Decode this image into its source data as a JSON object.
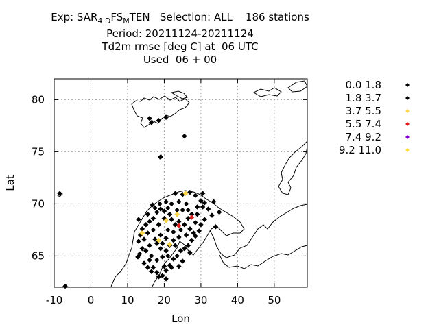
{
  "header": {
    "exp_prefix": "Exp: SAR",
    "exp_sub1": "4 D",
    "exp_mid": "FS",
    "exp_sub2": "M",
    "exp_suffix": "TEN   Selection: ALL    186 stations",
    "period": "Period: 20211124-20211124",
    "parameter": "Td2m rmse [deg C] at  06 UTC",
    "used": "Used  06 + 00"
  },
  "axes": {
    "xlabel": "Lon",
    "ylabel": "Lat",
    "xlim": [
      -10,
      59
    ],
    "ylim": [
      62,
      82
    ],
    "xticks": [
      -10,
      0,
      10,
      20,
      30,
      40,
      50
    ],
    "yticks": [
      65,
      70,
      75,
      80
    ],
    "grid": true
  },
  "legend": {
    "placement": "right",
    "entries": [
      {
        "label": "0.0 1.8",
        "color": "#000000"
      },
      {
        "label": "1.8 3.7",
        "color": "#000000"
      },
      {
        "label": "3.7 5.5",
        "color": "#ffd84a"
      },
      {
        "label": "5.5 7.4",
        "color": "#e02020"
      },
      {
        "label": "7.4 9.2",
        "color": "#8a00d4"
      },
      {
        "label": "9.2 11.0",
        "color": "#ffe040"
      }
    ]
  },
  "chart_data": {
    "type": "scatter",
    "title": "Td2m rmse [deg C] at  06 UTC",
    "xlabel": "Lon",
    "ylabel": "Lat",
    "xlim": [
      -10,
      59
    ],
    "ylim": [
      62,
      82
    ],
    "series": [
      {
        "name": "1.8 3.7",
        "color": "#000000",
        "points": [
          [
            16.0,
            78.2
          ],
          [
            18.5,
            78.0
          ],
          [
            20.5,
            78.3
          ],
          [
            16.5,
            77.8
          ],
          [
            25.5,
            76.5
          ],
          [
            19.0,
            74.5
          ],
          [
            -8.5,
            71.0
          ],
          [
            -7.0,
            62.1
          ],
          [
            23.0,
            71.0
          ],
          [
            25.0,
            70.9
          ],
          [
            27.0,
            71.1
          ],
          [
            28.5,
            70.8
          ],
          [
            30.0,
            70.3
          ],
          [
            31.0,
            70.1
          ],
          [
            32.0,
            69.5
          ],
          [
            29.0,
            69.7
          ],
          [
            26.0,
            70.0
          ],
          [
            24.0,
            70.2
          ],
          [
            22.0,
            70.0
          ],
          [
            21.0,
            69.6
          ],
          [
            20.0,
            69.3
          ],
          [
            19.0,
            69.5
          ],
          [
            18.0,
            69.2
          ],
          [
            17.0,
            68.6
          ],
          [
            16.0,
            68.3
          ],
          [
            15.0,
            68.0
          ],
          [
            14.0,
            67.6
          ],
          [
            13.5,
            67.0
          ],
          [
            13.0,
            66.4
          ],
          [
            14.0,
            65.7
          ],
          [
            13.3,
            65.2
          ],
          [
            12.8,
            64.9
          ],
          [
            14.5,
            64.3
          ],
          [
            15.5,
            63.9
          ],
          [
            16.5,
            63.5
          ],
          [
            18.0,
            63.4
          ],
          [
            19.5,
            63.1
          ],
          [
            20.5,
            63.6
          ],
          [
            21.5,
            64.1
          ],
          [
            22.5,
            64.7
          ],
          [
            23.5,
            65.0
          ],
          [
            24.5,
            65.5
          ],
          [
            25.5,
            65.7
          ],
          [
            26.5,
            66.0
          ],
          [
            27.5,
            66.5
          ],
          [
            28.5,
            66.9
          ],
          [
            29.5,
            67.4
          ],
          [
            30.0,
            68.0
          ],
          [
            31.0,
            68.5
          ],
          [
            33.0,
            68.9
          ],
          [
            35.0,
            69.2
          ],
          [
            34.0,
            67.8
          ],
          [
            22.0,
            68.5
          ],
          [
            23.0,
            68.0
          ],
          [
            21.0,
            67.5
          ],
          [
            19.0,
            67.0
          ],
          [
            17.5,
            66.6
          ],
          [
            16.0,
            66.0
          ],
          [
            15.0,
            65.5
          ],
          [
            16.5,
            65.0
          ],
          [
            18.0,
            64.6
          ],
          [
            19.5,
            64.9
          ],
          [
            20.5,
            65.5
          ],
          [
            21.5,
            66.0
          ],
          [
            22.5,
            66.5
          ],
          [
            24.5,
            67.5
          ],
          [
            25.5,
            68.0
          ],
          [
            26.5,
            68.6
          ],
          [
            27.5,
            69.0
          ],
          [
            28.5,
            68.2
          ],
          [
            27.0,
            67.6
          ],
          [
            26.0,
            67.0
          ],
          [
            24.0,
            66.8
          ],
          [
            23.0,
            66.0
          ],
          [
            21.0,
            65.0
          ],
          [
            19.0,
            65.7
          ],
          [
            17.0,
            67.5
          ],
          [
            18.5,
            68.0
          ],
          [
            20.0,
            68.6
          ],
          [
            21.5,
            69.0
          ],
          [
            23.5,
            69.4
          ],
          [
            25.0,
            69.4
          ],
          [
            26.5,
            69.4
          ],
          [
            18.0,
            66.2
          ],
          [
            14.5,
            66.6
          ],
          [
            15.5,
            67.2
          ],
          [
            20.0,
            64.0
          ],
          [
            22.0,
            63.9
          ],
          [
            16.0,
            64.6
          ],
          [
            17.0,
            63.9
          ],
          [
            18.5,
            63.0
          ],
          [
            20.5,
            62.8
          ],
          [
            29.0,
            69.0
          ],
          [
            30.5,
            69.7
          ],
          [
            24.0,
            68.3
          ],
          [
            22.5,
            67.3
          ],
          [
            20.5,
            66.7
          ],
          [
            19.5,
            66.2
          ],
          [
            28.0,
            67.2
          ],
          [
            27.0,
            65.3
          ],
          [
            25.0,
            64.5
          ],
          [
            24.0,
            64.0
          ],
          [
            13.0,
            68.5
          ],
          [
            15.5,
            69.0
          ],
          [
            17.5,
            69.6
          ],
          [
            20.5,
            70.2
          ],
          [
            18.8,
            70.0
          ],
          [
            16.8,
            69.9
          ],
          [
            33.5,
            70.2
          ],
          [
            30.5,
            71.0
          ]
        ]
      },
      {
        "name": "3.7 5.5",
        "color": "#ffd84a",
        "points": [
          [
            25.8,
            71.0
          ],
          [
            23.5,
            69.0
          ],
          [
            20.5,
            68.4
          ],
          [
            14.0,
            67.2
          ],
          [
            18.5,
            66.5
          ],
          [
            21.5,
            66.1
          ]
        ]
      },
      {
        "name": "5.5 7.4",
        "color": "#e02020",
        "points": [
          [
            24.0,
            67.9
          ],
          [
            27.5,
            68.7
          ]
        ]
      }
    ]
  }
}
